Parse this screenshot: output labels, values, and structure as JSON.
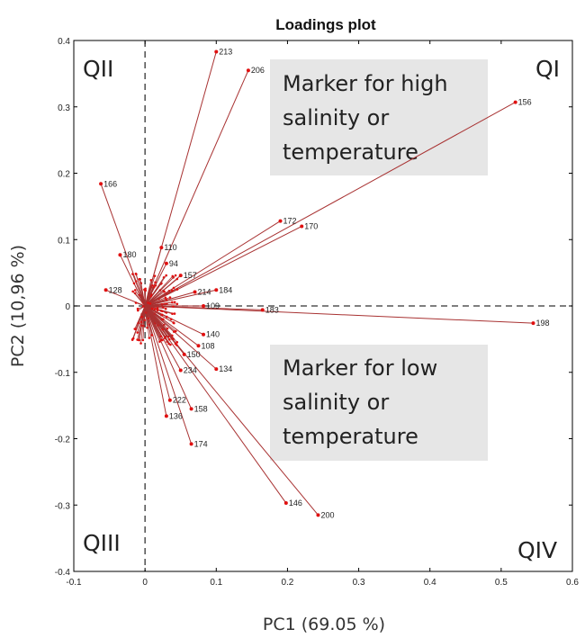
{
  "chart_data": {
    "type": "scatter",
    "title": "Loadings plot",
    "xlabel": "PC1 (69.05 %)",
    "ylabel": "PC2 (10,96 %)",
    "xlim": [
      -0.1,
      0.6
    ],
    "ylim": [
      -0.4,
      0.4
    ],
    "xticks": [
      "-0.1",
      "0",
      "0.1",
      "0.2",
      "0.3",
      "0.4",
      "0.5",
      "0.6"
    ],
    "yticks": [
      "-0.4",
      "-0.3",
      "-0.2",
      "-0.1",
      "0",
      "0.1",
      "0.2",
      "0.3",
      "0.4"
    ],
    "xtick_values": [
      -0.1,
      0,
      0.1,
      0.2,
      0.3,
      0.4,
      0.5,
      0.6
    ],
    "ytick_values": [
      -0.4,
      -0.3,
      -0.2,
      -0.1,
      0,
      0.1,
      0.2,
      0.3,
      0.4
    ],
    "grid": false,
    "reference_lines": {
      "x": 0,
      "y": 0,
      "style": "dashed"
    },
    "line_color": "#a83232",
    "point_color": "#e01010",
    "quadrants": {
      "q1": "QI",
      "q2": "QII",
      "q3": "QIII",
      "q4": "QIV"
    },
    "annotations": [
      {
        "lines": [
          "Marker for high",
          "salinity or",
          "temperature"
        ]
      },
      {
        "lines": [
          "Marker for low",
          "salinity or",
          "temperature"
        ]
      }
    ],
    "annotation_bg": "#e6e6e6",
    "points": [
      {
        "label": "213",
        "x": 0.1,
        "y": 0.383
      },
      {
        "label": "206",
        "x": 0.145,
        "y": 0.355
      },
      {
        "label": "156",
        "x": 0.52,
        "y": 0.307
      },
      {
        "label": "166",
        "x": -0.062,
        "y": 0.184
      },
      {
        "label": "172",
        "x": 0.19,
        "y": 0.128
      },
      {
        "label": "170",
        "x": 0.22,
        "y": 0.12
      },
      {
        "label": "110",
        "x": 0.023,
        "y": 0.088
      },
      {
        "label": "180",
        "x": -0.035,
        "y": 0.077
      },
      {
        "label": "94",
        "x": 0.03,
        "y": 0.064
      },
      {
        "label": "157",
        "x": 0.05,
        "y": 0.046
      },
      {
        "label": "184",
        "x": 0.1,
        "y": 0.024
      },
      {
        "label": "214",
        "x": 0.07,
        "y": 0.021
      },
      {
        "label": "128",
        "x": -0.055,
        "y": 0.024
      },
      {
        "label": "109",
        "x": 0.082,
        "y": 0.0
      },
      {
        "label": "183",
        "x": 0.165,
        "y": -0.006
      },
      {
        "label": "198",
        "x": 0.545,
        "y": -0.026
      },
      {
        "label": "140",
        "x": 0.082,
        "y": -0.043
      },
      {
        "label": "108",
        "x": 0.075,
        "y": -0.06
      },
      {
        "label": "150",
        "x": 0.055,
        "y": -0.073
      },
      {
        "label": "134",
        "x": 0.1,
        "y": -0.095
      },
      {
        "label": "234",
        "x": 0.05,
        "y": -0.097
      },
      {
        "label": "222",
        "x": 0.035,
        "y": -0.142
      },
      {
        "label": "158",
        "x": 0.065,
        "y": -0.155
      },
      {
        "label": "136",
        "x": 0.03,
        "y": -0.166
      },
      {
        "label": "174",
        "x": 0.065,
        "y": -0.208
      },
      {
        "label": "146",
        "x": 0.198,
        "y": -0.297
      },
      {
        "label": "200",
        "x": 0.243,
        "y": -0.315
      }
    ]
  }
}
